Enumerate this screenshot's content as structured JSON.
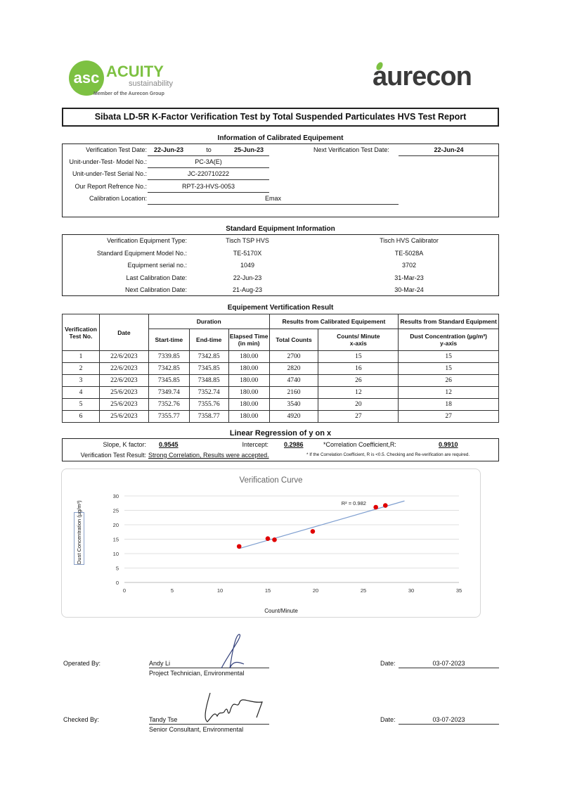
{
  "logos": {
    "left": {
      "name": "ACUITY",
      "sub": "sustainability",
      "tagline": "Member of the Aurecon Group",
      "accent": "#7dc142"
    },
    "right": {
      "name": "aurecon",
      "color": "#3a3a3a",
      "leaf": "#7dc142"
    }
  },
  "title": "Sibata LD-5R K-Factor Verification Test by Total Suspended Particulates HVS Test Report",
  "info": {
    "heading": "Information of Calibrated Equipement",
    "test_date_label": "Verification Test Date:",
    "test_date_from": "22-Jun-23",
    "to": "to",
    "test_date_to": "25-Jun-23",
    "next_label": "Next Verification Test Date:",
    "next_value": "22-Jun-24",
    "model_label": "Unit-under-Test- Model No.:",
    "model_value": "PC-3A(E)",
    "serial_label": "Unit-under-Test Serial No.:",
    "serial_value": "JC-220710222",
    "report_label": "Our Report Refrence No.:",
    "report_value": "RPT-23-HVS-0053",
    "location_label": "Calibration Location:",
    "location_value": "Emax"
  },
  "standard": {
    "heading": "Standard Equipment Information",
    "rows": [
      {
        "label": "Verification Equipment Type:",
        "a": "Tisch TSP HVS",
        "b": "Tisch HVS Calibrator"
      },
      {
        "label": "Standard Equipment Model No.:",
        "a": "TE-5170X",
        "b": "TE-5028A"
      },
      {
        "label": "Equipment serial no.:",
        "a": "1049",
        "b": "3702"
      },
      {
        "label": "Last Calibration Date:",
        "a": "22-Jun-23",
        "b": "31-Mar-23"
      },
      {
        "label": "Next Calibration Date:",
        "a": "21-Aug-23",
        "b": "30-Mar-24"
      }
    ]
  },
  "results": {
    "heading": "Equipement Vertification Result",
    "h_test": "Verification Test No.",
    "h_date": "Date",
    "h_duration": "Duration",
    "h_calibrated": "Results from Calibrated Equipement",
    "h_standard": "Results from Standard Equipment",
    "h_start": "Start-time",
    "h_end": "End-time",
    "h_elapsed": "Elapsed Time (in min)",
    "h_total": "Total Counts",
    "h_cpm": "Counts/ Minute",
    "h_x": "x-axis",
    "h_dust": "Dust Concentration (µg/m³)",
    "h_y": "y-axis",
    "rows": [
      [
        "1",
        "22/6/2023",
        "7339.85",
        "7342.85",
        "180.00",
        "2700",
        "15",
        "15"
      ],
      [
        "2",
        "22/6/2023",
        "7342.85",
        "7345.85",
        "180.00",
        "2820",
        "16",
        "15"
      ],
      [
        "3",
        "22/6/2023",
        "7345.85",
        "7348.85",
        "180.00",
        "4740",
        "26",
        "26"
      ],
      [
        "4",
        "25/6/2023",
        "7349.74",
        "7352.74",
        "180.00",
        "2160",
        "12",
        "12"
      ],
      [
        "5",
        "25/6/2023",
        "7352.76",
        "7355.76",
        "180.00",
        "3540",
        "20",
        "18"
      ],
      [
        "6",
        "25/6/2023",
        "7355.77",
        "7358.77",
        "180.00",
        "4920",
        "27",
        "27"
      ]
    ]
  },
  "regression": {
    "heading": "Linear Regression of y on x",
    "slope_label": "Slope, K factor:",
    "slope": "0.9545",
    "intercept_label": "Intercept:",
    "intercept": "0.2986",
    "r_label": "*Correlation Coefficient,R:",
    "r": "0.9910",
    "result_label": "Verification Test Result:",
    "result": "Strong Correlation, Results were accepted.",
    "note": "* If the Correlation Coefficient, R is <0.5. Checking and Re-verification are required."
  },
  "chart_data": {
    "type": "scatter",
    "title": "Verification Curve",
    "xlabel": "Count/Minute",
    "ylabel": "Dust Concentration (µg/m³)",
    "xlim": [
      0,
      35
    ],
    "ylim": [
      0,
      30
    ],
    "xticks": [
      "0",
      "5",
      "10",
      "15",
      "20",
      "25",
      "30",
      "35"
    ],
    "yticks": [
      "0",
      "5",
      "10",
      "15",
      "20",
      "25",
      "30"
    ],
    "grid": "horizontal",
    "points": [
      [
        12,
        12.5
      ],
      [
        15,
        15.2
      ],
      [
        15.7,
        14.8
      ],
      [
        19.7,
        17.7
      ],
      [
        26.3,
        26.1
      ],
      [
        27.3,
        26.7
      ]
    ],
    "trendline": {
      "slope": 0.9545,
      "intercept": 0.2986,
      "x_range": [
        12,
        29.3
      ],
      "label": "R² = 0.982"
    },
    "point_color": "#e00000",
    "line_color": "#7f9fd0"
  },
  "signoff": {
    "operated_label": "Operated By:",
    "operated_name": "Andy Li",
    "operated_title": "Project Technician, Environmental",
    "checked_label": "Checked By:",
    "checked_name": "Tandy Tse",
    "checked_title": "Senior Consultant, Environmental",
    "date_label": "Date:",
    "date1": "03-07-2023",
    "date2": "03-07-2023"
  }
}
